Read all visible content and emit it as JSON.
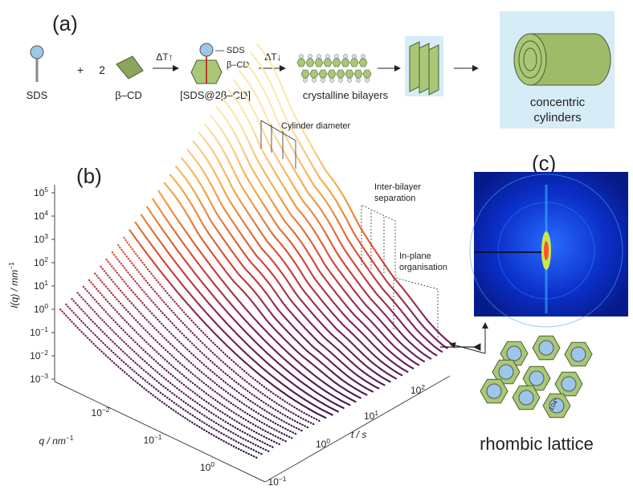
{
  "panel_a": {
    "label": "(a)",
    "sds": "SDS",
    "plus": "+",
    "two": "2",
    "bcd": "β–CD",
    "heat": "ΔT↑",
    "complex_sds": "— SDS",
    "complex_bcd": "β–CD",
    "complex": "[SDS@2β–CD]",
    "cool": "ΔT↓",
    "bilayers": "crystalline bilayers",
    "final": [
      "concentric",
      "cylinders"
    ]
  },
  "panel_b": {
    "label": "(b)",
    "y_label": {
      "text": "I(q) / mm",
      "exp": "−1"
    },
    "y_ticks": [
      {
        "base": "10",
        "exp": "5"
      },
      {
        "base": "10",
        "exp": "4"
      },
      {
        "base": "10",
        "exp": "3"
      },
      {
        "base": "10",
        "exp": "2"
      },
      {
        "base": "10",
        "exp": "1"
      },
      {
        "base": "10",
        "exp": "0"
      },
      {
        "base": "10",
        "exp": "−1"
      },
      {
        "base": "10",
        "exp": "−2"
      },
      {
        "base": "10",
        "exp": "−3"
      }
    ],
    "q_label": {
      "text": "q / nm",
      "exp": "−1"
    },
    "q_ticks": [
      {
        "base": "10",
        "exp": "−2"
      },
      {
        "base": "10",
        "exp": "−1"
      },
      {
        "base": "10",
        "exp": "0"
      }
    ],
    "t_label": "t / s",
    "t_ticks": [
      {
        "base": "10",
        "exp": "−1"
      },
      {
        "base": "10",
        "exp": "0"
      },
      {
        "base": "10",
        "exp": "1"
      },
      {
        "base": "10",
        "exp": "2"
      }
    ],
    "annotations": {
      "cylinder": "Cylinder diameter",
      "inter": [
        "Inter-bilayer",
        "separation"
      ],
      "inplane": [
        "In-plane",
        "organisation"
      ]
    }
  },
  "panel_c": {
    "label": "(c)",
    "angle": "104°",
    "caption": "rhombic lattice"
  }
}
